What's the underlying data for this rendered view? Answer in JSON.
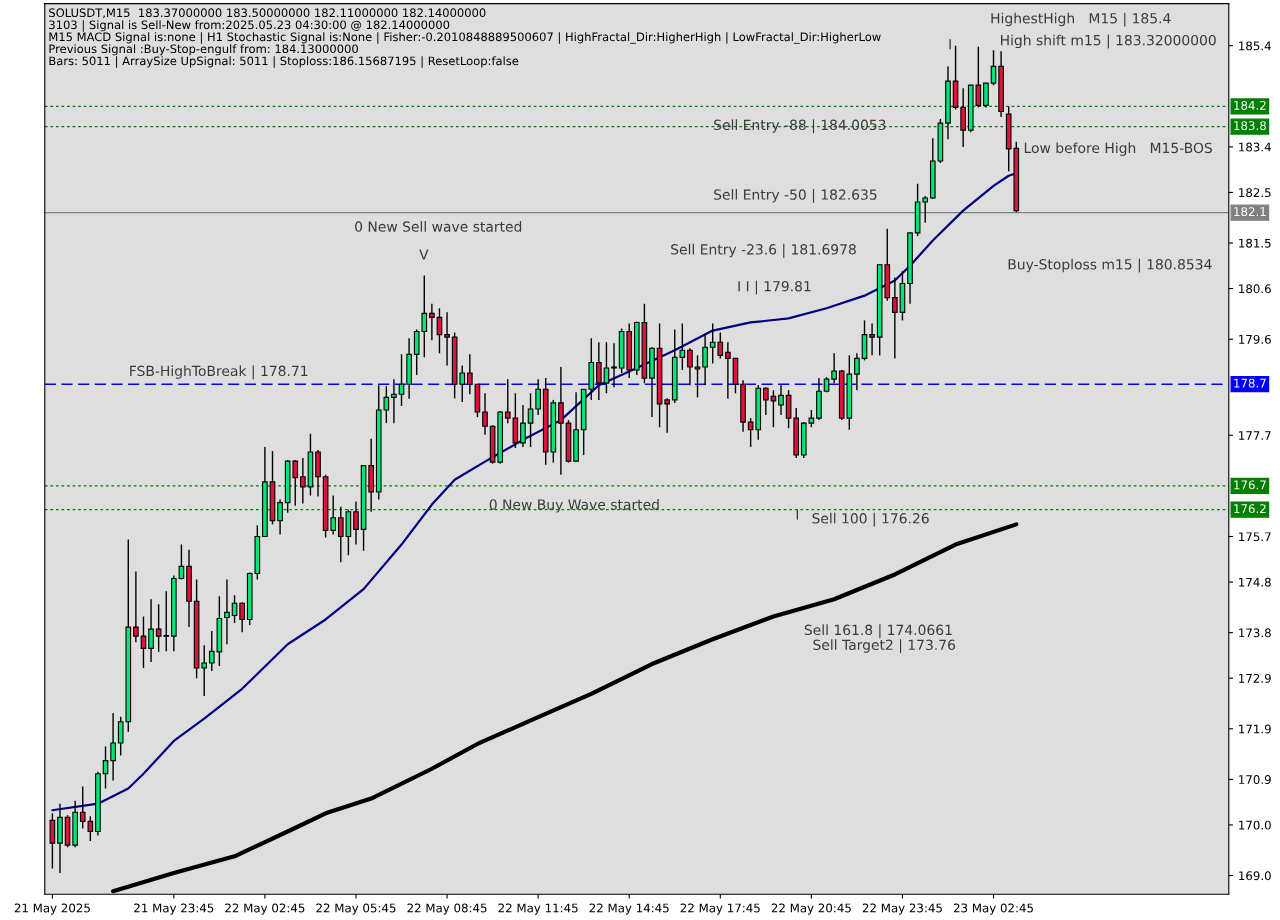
{
  "chart_data": {
    "type": "candlestick",
    "x": [
      "2025-05-21T19:45",
      "2025-05-21T20:00",
      "2025-05-21T20:15",
      "2025-05-21T20:30",
      "2025-05-21T20:45",
      "2025-05-21T21:00",
      "2025-05-21T21:15",
      "2025-05-21T21:30",
      "2025-05-21T21:45",
      "2025-05-21T22:00",
      "2025-05-21T22:15",
      "2025-05-21T22:30",
      "2025-05-21T22:45",
      "2025-05-21T23:00",
      "2025-05-21T23:15",
      "2025-05-21T23:30",
      "2025-05-21T23:45",
      "2025-05-22T00:00",
      "2025-05-22T00:15",
      "2025-05-22T00:30",
      "2025-05-22T00:45",
      "2025-05-22T01:00",
      "2025-05-22T01:15",
      "2025-05-22T01:30",
      "2025-05-22T01:45",
      "2025-05-22T02:00",
      "2025-05-22T02:15",
      "2025-05-22T02:30",
      "2025-05-22T02:45",
      "2025-05-22T03:00",
      "2025-05-22T03:15",
      "2025-05-22T03:30",
      "2025-05-22T03:45",
      "2025-05-22T04:00",
      "2025-05-22T04:15",
      "2025-05-22T04:30",
      "2025-05-22T04:45",
      "2025-05-22T05:00",
      "2025-05-22T05:15",
      "2025-05-22T05:30",
      "2025-05-22T05:45",
      "2025-05-22T06:00",
      "2025-05-22T06:15",
      "2025-05-22T06:30",
      "2025-05-22T06:45",
      "2025-05-22T07:00",
      "2025-05-22T07:15",
      "2025-05-22T07:30",
      "2025-05-22T07:45",
      "2025-05-22T08:00",
      "2025-05-22T08:15",
      "2025-05-22T08:30",
      "2025-05-22T08:45",
      "2025-05-22T09:00",
      "2025-05-22T09:15",
      "2025-05-22T09:30",
      "2025-05-22T09:45",
      "2025-05-22T10:00",
      "2025-05-22T10:15",
      "2025-05-22T10:30",
      "2025-05-22T10:45",
      "2025-05-22T11:00",
      "2025-05-22T11:15",
      "2025-05-22T11:30",
      "2025-05-22T11:45",
      "2025-05-22T12:00",
      "2025-05-22T12:15",
      "2025-05-22T12:30",
      "2025-05-22T12:45",
      "2025-05-22T13:00",
      "2025-05-22T13:15",
      "2025-05-22T13:30",
      "2025-05-22T13:45",
      "2025-05-22T14:00",
      "2025-05-22T14:15",
      "2025-05-22T14:30",
      "2025-05-22T14:45",
      "2025-05-22T15:00",
      "2025-05-22T15:15",
      "2025-05-22T15:30",
      "2025-05-22T15:45",
      "2025-05-22T16:00",
      "2025-05-22T16:15",
      "2025-05-22T16:30",
      "2025-05-22T16:45",
      "2025-05-22T17:00",
      "2025-05-22T17:15",
      "2025-05-22T17:30",
      "2025-05-22T17:45",
      "2025-05-22T18:00",
      "2025-05-22T18:15",
      "2025-05-22T18:30",
      "2025-05-22T18:45",
      "2025-05-22T19:00",
      "2025-05-22T19:15",
      "2025-05-22T19:30",
      "2025-05-22T19:45",
      "2025-05-22T20:00",
      "2025-05-22T20:15",
      "2025-05-22T20:30",
      "2025-05-22T20:45",
      "2025-05-22T21:00",
      "2025-05-22T21:15",
      "2025-05-22T21:30",
      "2025-05-22T21:45",
      "2025-05-22T22:00",
      "2025-05-22T22:15",
      "2025-05-22T22:30",
      "2025-05-22T22:45",
      "2025-05-22T23:00",
      "2025-05-22T23:15",
      "2025-05-22T23:30",
      "2025-05-22T23:45",
      "2025-05-23T00:00",
      "2025-05-23T00:15",
      "2025-05-23T00:30",
      "2025-05-23T00:45",
      "2025-05-23T01:00",
      "2025-05-23T01:15",
      "2025-05-23T01:30",
      "2025-05-23T01:45",
      "2025-05-23T02:00",
      "2025-05-23T02:15",
      "2025-05-23T02:30",
      "2025-05-23T02:45",
      "2025-05-23T03:00",
      "2025-05-23T03:15",
      "2025-05-23T03:30"
    ],
    "ohlc": [
      [
        170.09,
        170.23,
        169.14,
        169.64
      ],
      [
        169.64,
        170.42,
        169.05,
        170.15
      ],
      [
        170.15,
        170.19,
        169.56,
        169.6
      ],
      [
        169.6,
        170.48,
        169.56,
        170.25
      ],
      [
        170.25,
        170.76,
        169.93,
        170.07
      ],
      [
        170.07,
        170.17,
        169.68,
        169.87
      ],
      [
        169.87,
        171.05,
        169.79,
        171.01
      ],
      [
        171.01,
        171.55,
        170.72,
        171.27
      ],
      [
        171.27,
        172.21,
        170.88,
        171.62
      ],
      [
        171.62,
        172.14,
        171.37,
        172.04
      ],
      [
        172.04,
        175.64,
        171.84,
        173.91
      ],
      [
        173.91,
        175.01,
        173.61,
        173.73
      ],
      [
        173.73,
        174.12,
        173.1,
        173.49
      ],
      [
        173.49,
        174.46,
        173.22,
        173.87
      ],
      [
        173.87,
        174.36,
        173.42,
        173.73
      ],
      [
        173.73,
        174.62,
        173.43,
        173.73
      ],
      [
        173.73,
        174.93,
        173.43,
        174.87
      ],
      [
        174.87,
        175.54,
        174.85,
        175.11
      ],
      [
        175.11,
        175.44,
        173.91,
        174.42
      ],
      [
        174.42,
        174.85,
        172.9,
        173.1
      ],
      [
        173.1,
        173.55,
        172.55,
        173.2
      ],
      [
        173.2,
        173.83,
        173.04,
        173.43
      ],
      [
        173.42,
        174.52,
        173.14,
        174.08
      ],
      [
        174.1,
        174.85,
        173.57,
        174.2
      ],
      [
        174.14,
        174.54,
        173.99,
        174.38
      ],
      [
        174.38,
        174.4,
        173.81,
        174.06
      ],
      [
        174.06,
        174.99,
        173.95,
        174.97
      ],
      [
        174.97,
        175.92,
        174.85,
        175.7
      ],
      [
        175.7,
        177.47,
        175.7,
        176.78
      ],
      [
        176.78,
        177.39,
        175.94,
        176.01
      ],
      [
        176.01,
        176.43,
        175.74,
        176.37
      ],
      [
        176.37,
        177.21,
        176.17,
        177.19
      ],
      [
        177.19,
        177.21,
        176.31,
        176.86
      ],
      [
        176.88,
        177.25,
        176.35,
        176.68
      ],
      [
        176.68,
        177.73,
        176.51,
        177.37
      ],
      [
        177.37,
        177.41,
        176.49,
        176.88
      ],
      [
        176.88,
        176.92,
        175.68,
        175.82
      ],
      [
        175.82,
        176.51,
        175.74,
        176.07
      ],
      [
        176.07,
        176.29,
        175.19,
        175.7
      ],
      [
        175.7,
        176.23,
        175.33,
        176.19
      ],
      [
        176.19,
        176.39,
        175.54,
        175.84
      ],
      [
        175.84,
        177.1,
        175.42,
        177.1
      ],
      [
        177.1,
        177.63,
        176.19,
        176.58
      ],
      [
        176.58,
        178.69,
        176.43,
        178.2
      ],
      [
        178.2,
        178.67,
        177.94,
        178.45
      ],
      [
        178.45,
        178.81,
        177.94,
        178.51
      ],
      [
        178.51,
        179.3,
        178.28,
        178.71
      ],
      [
        178.71,
        179.62,
        178.42,
        179.3
      ],
      [
        179.3,
        179.79,
        178.89,
        179.75
      ],
      [
        179.75,
        180.86,
        179.24,
        180.11
      ],
      [
        180.11,
        180.3,
        179.58,
        180.03
      ],
      [
        180.03,
        180.21,
        179.32,
        179.69
      ],
      [
        179.69,
        180.13,
        179.08,
        179.64
      ],
      [
        179.64,
        179.73,
        178.43,
        178.71
      ],
      [
        178.71,
        179.08,
        178.36,
        178.93
      ],
      [
        178.93,
        179.3,
        178.51,
        178.71
      ],
      [
        178.71,
        178.71,
        178.06,
        178.16
      ],
      [
        178.16,
        178.53,
        177.71,
        177.88
      ],
      [
        177.88,
        177.9,
        177.14,
        177.17
      ],
      [
        177.17,
        178.18,
        177.14,
        178.16
      ],
      [
        178.16,
        178.81,
        177.94,
        178.04
      ],
      [
        178.04,
        178.53,
        177.45,
        177.55
      ],
      [
        177.55,
        178.3,
        177.47,
        177.94
      ],
      [
        177.94,
        178.53,
        177.47,
        178.22
      ],
      [
        178.22,
        178.81,
        178.1,
        178.61
      ],
      [
        178.61,
        178.83,
        177.12,
        177.37
      ],
      [
        177.37,
        178.4,
        177.16,
        178.34
      ],
      [
        178.34,
        179.05,
        176.92,
        177.94
      ],
      [
        177.94,
        178.0,
        177.16,
        177.19
      ],
      [
        177.19,
        178.55,
        177.17,
        177.81
      ],
      [
        177.81,
        178.61,
        177.31,
        178.61
      ],
      [
        178.61,
        179.62,
        178.4,
        179.14
      ],
      [
        179.14,
        179.54,
        178.4,
        178.73
      ],
      [
        178.73,
        179.54,
        178.53,
        179.03
      ],
      [
        179.03,
        179.52,
        178.65,
        179.05
      ],
      [
        179.03,
        179.81,
        178.93,
        179.75
      ],
      [
        179.75,
        179.91,
        178.83,
        178.99
      ],
      [
        178.99,
        179.95,
        178.89,
        179.93
      ],
      [
        179.93,
        180.3,
        178.73,
        178.83
      ],
      [
        178.83,
        179.44,
        178.06,
        179.42
      ],
      [
        179.42,
        179.91,
        177.86,
        178.32
      ],
      [
        178.4,
        178.43,
        177.75,
        178.32
      ],
      [
        178.4,
        179.79,
        178.34,
        179.24
      ],
      [
        179.24,
        179.91,
        178.99,
        179.38
      ],
      [
        179.38,
        179.42,
        178.69,
        179.05
      ],
      [
        179.05,
        179.28,
        178.45,
        179.01
      ],
      [
        179.05,
        179.71,
        178.69,
        179.44
      ],
      [
        179.44,
        179.91,
        179.12,
        179.54
      ],
      [
        179.54,
        179.73,
        179.22,
        179.28
      ],
      [
        179.34,
        179.54,
        178.42,
        179.22
      ],
      [
        179.22,
        179.22,
        178.53,
        178.71
      ],
      [
        178.71,
        178.79,
        177.77,
        177.96
      ],
      [
        177.96,
        178.04,
        177.47,
        177.81
      ],
      [
        177.81,
        178.69,
        177.61,
        178.63
      ],
      [
        178.63,
        178.65,
        178.1,
        178.4
      ],
      [
        178.47,
        178.59,
        177.86,
        178.38
      ],
      [
        178.3,
        178.69,
        178.1,
        178.49
      ],
      [
        178.49,
        178.59,
        177.84,
        178.04
      ],
      [
        178.04,
        178.24,
        177.25,
        177.31
      ],
      [
        177.31,
        177.96,
        177.25,
        177.94
      ],
      [
        177.94,
        178.2,
        177.86,
        178.04
      ],
      [
        178.04,
        178.83,
        178.0,
        178.57
      ],
      [
        178.57,
        178.85,
        178.55,
        178.81
      ],
      [
        178.81,
        179.32,
        178.73,
        178.97
      ],
      [
        178.97,
        178.99,
        178.0,
        178.04
      ],
      [
        178.04,
        179.28,
        177.81,
        178.91
      ],
      [
        178.91,
        179.32,
        178.59,
        179.22
      ],
      [
        179.22,
        179.97,
        179.18,
        179.69
      ],
      [
        179.69,
        179.91,
        179.28,
        179.64
      ],
      [
        179.64,
        181.07,
        179.28,
        181.07
      ],
      [
        181.07,
        181.78,
        180.36,
        180.42
      ],
      [
        180.42,
        180.82,
        179.22,
        180.13
      ],
      [
        180.13,
        180.95,
        179.97,
        180.7
      ],
      [
        180.7,
        181.7,
        180.3,
        181.7
      ],
      [
        181.7,
        182.67,
        181.64,
        182.31
      ],
      [
        182.31,
        182.43,
        181.9,
        182.39
      ],
      [
        182.39,
        183.57,
        182.37,
        183.12
      ],
      [
        183.12,
        183.95,
        183.08,
        183.87
      ],
      [
        183.87,
        184.99,
        183.55,
        184.7
      ],
      [
        184.7,
        185.4,
        184.14,
        184.18
      ],
      [
        184.18,
        184.56,
        183.4,
        183.73
      ],
      [
        183.73,
        184.62,
        183.69,
        184.62
      ],
      [
        184.62,
        185.38,
        184.18,
        184.22
      ],
      [
        184.22,
        184.66,
        184.18,
        184.66
      ],
      [
        184.66,
        185.31,
        184.62,
        184.99
      ],
      [
        184.99,
        185.29,
        183.99,
        184.1
      ],
      [
        184.05,
        184.2,
        182.92,
        183.36
      ],
      [
        183.37,
        183.5,
        182.11,
        182.14
      ]
    ],
    "colors": [
      "#dc143c",
      "#00e676",
      "#dc143c",
      "#00e676",
      "#dc143c",
      "#dc143c",
      "#00e676",
      "#00e676",
      "#00e676",
      "#00e676",
      "#00e676",
      "#dc143c",
      "#dc143c",
      "#00e676",
      "#dc143c",
      "#00e676",
      "#00e676",
      "#00e676",
      "#dc143c",
      "#dc143c",
      "#00e676",
      "#00e676",
      "#00e676",
      "#00e676",
      "#00e676",
      "#dc143c",
      "#00e676",
      "#00e676",
      "#00e676",
      "#dc143c",
      "#00e676",
      "#00e676",
      "#dc143c",
      "#dc143c",
      "#00e676",
      "#dc143c",
      "#dc143c",
      "#00e676",
      "#dc143c",
      "#00e676",
      "#dc143c",
      "#00e676",
      "#dc143c",
      "#00e676",
      "#00e676",
      "#00e676",
      "#00e676",
      "#00e676",
      "#00e676",
      "#00e676",
      "#dc143c",
      "#dc143c",
      "#dc143c",
      "#dc143c",
      "#00e676",
      "#dc143c",
      "#dc143c",
      "#dc143c",
      "#dc143c",
      "#00e676",
      "#dc143c",
      "#dc143c",
      "#00e676",
      "#00e676",
      "#00e676",
      "#dc143c",
      "#00e676",
      "#dc143c",
      "#dc143c",
      "#00e676",
      "#00e676",
      "#00e676",
      "#dc143c",
      "#00e676",
      "#00e676",
      "#00e676",
      "#dc143c",
      "#00e676",
      "#dc143c",
      "#00e676",
      "#dc143c",
      "#dc143c",
      "#00e676",
      "#00e676",
      "#dc143c",
      "#dc143c",
      "#00e676",
      "#00e676",
      "#dc143c",
      "#dc143c",
      "#dc143c",
      "#dc143c",
      "#dc143c",
      "#00e676",
      "#dc143c",
      "#dc143c",
      "#00e676",
      "#dc143c",
      "#dc143c",
      "#00e676",
      "#00e676",
      "#00e676",
      "#00e676",
      "#00e676",
      "#dc143c",
      "#00e676",
      "#00e676",
      "#00e676",
      "#dc143c",
      "#00e676",
      "#dc143c",
      "#dc143c",
      "#00e676",
      "#00e676",
      "#00e676",
      "#00e676",
      "#00e676",
      "#00e676",
      "#00e676",
      "#dc143c",
      "#dc143c",
      "#00e676",
      "#dc143c",
      "#00e676",
      "#00e676",
      "#dc143c",
      "#dc143c",
      "#dc143c"
    ],
    "series": [
      {
        "type": "line",
        "color": "#000080",
        "x": [
          "2025-05-21T19:45",
          "2025-05-21T21:15",
          "2025-05-21T22:15",
          "2025-05-21T22:45",
          "2025-05-21T23:45",
          "2025-05-22T00:45",
          "2025-05-22T02:00",
          "2025-05-22T03:30",
          "2025-05-22T04:45",
          "2025-05-22T06:00",
          "2025-05-22T07:15",
          "2025-05-22T08:15",
          "2025-05-22T09:00",
          "2025-05-22T10:00",
          "2025-05-22T11:15",
          "2025-05-22T12:30",
          "2025-05-22T13:45",
          "2025-05-22T15:00",
          "2025-05-22T16:15",
          "2025-05-22T17:30",
          "2025-05-22T18:45",
          "2025-05-22T20:00",
          "2025-05-22T21:15",
          "2025-05-22T22:30",
          "2025-05-22T23:30",
          "2025-05-23T00:00",
          "2025-05-23T00:45",
          "2025-05-23T01:45",
          "2025-05-23T02:45",
          "2025-05-23T03:15",
          "2025-05-23T03:30"
        ],
        "values": [
          170.29,
          170.42,
          170.72,
          171.01,
          171.66,
          172.1,
          172.69,
          173.57,
          174.06,
          174.66,
          175.54,
          176.33,
          176.82,
          177.18,
          177.61,
          178.0,
          178.69,
          179.03,
          179.38,
          179.77,
          179.93,
          180.01,
          180.21,
          180.46,
          180.76,
          181.05,
          181.55,
          182.14,
          182.63,
          182.83,
          182.88
        ]
      },
      {
        "type": "line",
        "color": "#000000",
        "x": [
          "2025-05-21T21:45",
          "2025-05-21T23:45",
          "2025-05-22T01:45",
          "2025-05-22T03:30",
          "2025-05-22T04:45",
          "2025-05-22T06:15",
          "2025-05-22T08:15",
          "2025-05-22T09:45",
          "2025-05-22T11:45",
          "2025-05-22T13:30",
          "2025-05-22T15:30",
          "2025-05-22T17:30",
          "2025-05-22T19:30",
          "2025-05-22T21:30",
          "2025-05-22T23:30",
          "2025-05-23T01:30",
          "2025-05-23T03:30"
        ],
        "values": [
          168.69,
          169.05,
          169.38,
          169.87,
          170.23,
          170.52,
          171.11,
          171.6,
          172.13,
          172.59,
          173.18,
          173.67,
          174.12,
          174.46,
          174.95,
          175.54,
          175.94
        ]
      }
    ],
    "xlim": [
      "2025-05-21T19:30",
      "2025-05-23T10:30"
    ],
    "xticks": [
      {
        "value": "2025-05-21T19:45",
        "label": "21 May 2025"
      },
      {
        "value": "2025-05-21T23:45",
        "label": "21 May 23:45"
      },
      {
        "value": "2025-05-22T02:45",
        "label": "22 May 02:45"
      },
      {
        "value": "2025-05-22T05:45",
        "label": "22 May 05:45"
      },
      {
        "value": "2025-05-22T08:45",
        "label": "22 May 08:45"
      },
      {
        "value": "2025-05-22T11:45",
        "label": "22 May 11:45"
      },
      {
        "value": "2025-05-22T14:45",
        "label": "22 May 14:45"
      },
      {
        "value": "2025-05-22T17:45",
        "label": "22 May 17:45"
      },
      {
        "value": "2025-05-22T20:45",
        "label": "22 May 20:45"
      },
      {
        "value": "2025-05-22T23:45",
        "label": "22 May 23:45"
      },
      {
        "value": "2025-05-23T02:45",
        "label": "23 May 02:45"
      }
    ],
    "ylim": [
      168.63,
      186.23
    ],
    "yticks": [
      185.4,
      183.4,
      182.5,
      181.5,
      180.6,
      179.6,
      177.7,
      175.7,
      174.8,
      173.8,
      172.9,
      171.9,
      170.9,
      {
        "value": 170.0,
        "label": "170.0"
      },
      {
        "value": 169.0,
        "label": "169.0"
      }
    ],
    "ref_lines": [
      {
        "axis": "y",
        "value": 184.2,
        "label": "184.2",
        "color": "#008000",
        "line_style": "dotted"
      },
      {
        "axis": "y",
        "value": 183.8,
        "label": "183.8",
        "color": "#008000",
        "line_style": "dotted"
      },
      {
        "axis": "y",
        "value": 182.1,
        "label": "182.1",
        "color": "#808080",
        "line_style": "solid"
      },
      {
        "axis": "y",
        "value": 178.71,
        "label": "178.7",
        "color": "#0000ff",
        "line_style": "dashed"
      },
      {
        "axis": "y",
        "value": 176.7,
        "label": "176.7",
        "color": "#008000",
        "line_style": "dotted"
      },
      {
        "axis": "y",
        "value": 176.23,
        "label": "176.2",
        "color": "#008000",
        "line_style": "dotted"
      }
    ],
    "annotations": [
      "SOLUSDT,M15  183.37000000 183.50000000 182.11000000 182.14000000",
      "3103 | Signal is Sell-New from:2025.05.23 04:30:00 @ 182.14000000",
      "M15 MACD Signal is:none | H1 Stochastic Signal is:None | Fisher:-0.2010848889500607 | HighFractal_Dir:HigherHigh | LowFractal_Dir:HigherLow",
      "Previous Signal :Buy-Stop-engulf from: 184.13000000",
      "Bars: 5011 | ArraySize UpSignal: 5011 | Stoploss:186.15687195 | ResetLoop:false",
      "FSB-HighToBreak | 178.71",
      "0 New Sell wave started",
      "V",
      "0 New Buy Wave started",
      "Sell Entry -88 | 184.0053",
      "Sell Entry -50 | 182.635",
      "Sell Entry -23.6 | 181.6978",
      "I I | 179.81",
      "I",
      "Sell 100 | 176.26",
      "Sell 161.8 | 174.0661",
      "Sell Target2 | 173.76",
      "I",
      "HighestHigh   M15 | 185.4",
      "High shift m15 | 183.32000000",
      "Low before High   M15-BOS",
      "Buy-Stoploss m15 | 180.8534"
    ]
  }
}
